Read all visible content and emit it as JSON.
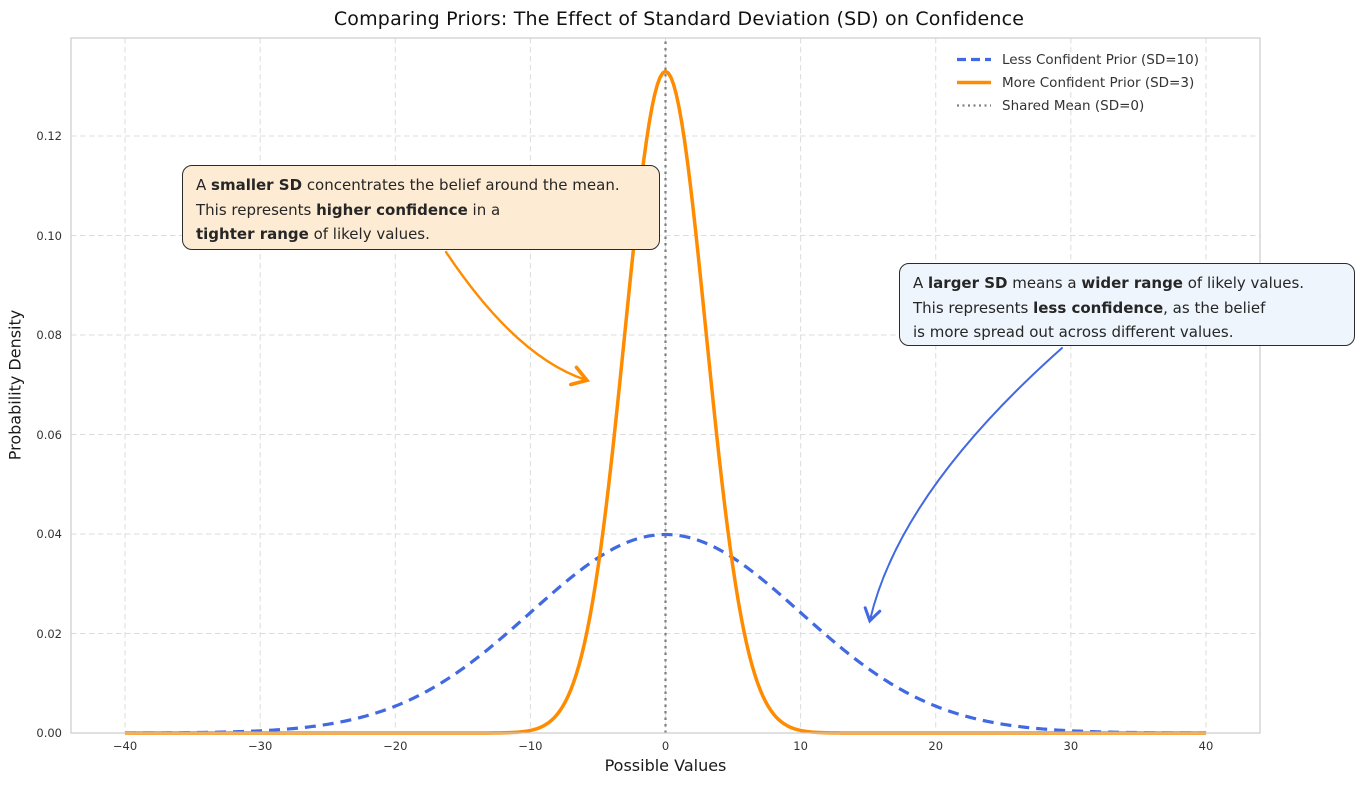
{
  "chart_data": {
    "type": "line",
    "title": "Comparing Priors: The Effect of Standard Deviation (SD) on Confidence",
    "xlabel": "Possible Values",
    "ylabel": "Probability Density",
    "xlim": [
      -44,
      44
    ],
    "ylim": [
      0,
      0.1397
    ],
    "grid": true,
    "legend_location": "upper right",
    "xticks": [
      {
        "v": -40,
        "label": "−40"
      },
      {
        "v": -30,
        "label": "−30"
      },
      {
        "v": -20,
        "label": "−20"
      },
      {
        "v": -10,
        "label": "−10"
      },
      {
        "v": 0,
        "label": "0"
      },
      {
        "v": 10,
        "label": "10"
      },
      {
        "v": 20,
        "label": "20"
      },
      {
        "v": 30,
        "label": "30"
      },
      {
        "v": 40,
        "label": "40"
      }
    ],
    "yticks": [
      {
        "v": 0.0,
        "label": "0.00"
      },
      {
        "v": 0.02,
        "label": "0.02"
      },
      {
        "v": 0.04,
        "label": "0.04"
      },
      {
        "v": 0.06,
        "label": "0.06"
      },
      {
        "v": 0.08,
        "label": "0.08"
      },
      {
        "v": 0.1,
        "label": "0.10"
      },
      {
        "v": 0.12,
        "label": "0.12"
      }
    ],
    "series": [
      {
        "label": "Less Confident Prior (SD=10)",
        "curve": "normal_pdf",
        "mean": 0,
        "sd": 10,
        "x_range": [
          -40,
          40
        ],
        "color": "#4169e1",
        "line_style": "dashed",
        "line_width": 3.2,
        "peak_density": 0.0399,
        "sample_x": [
          -40,
          -35,
          -30,
          -25,
          -20,
          -15,
          -10,
          -5,
          0,
          5,
          10,
          15,
          20,
          25,
          30,
          35,
          40
        ],
        "sample_y": [
          1.34e-05,
          8.73e-05,
          0.000443,
          0.00175,
          0.0054,
          0.01295,
          0.0242,
          0.03521,
          0.03989,
          0.03521,
          0.0242,
          0.01295,
          0.0054,
          0.00175,
          0.000443,
          8.73e-05,
          1.34e-05
        ]
      },
      {
        "label": "More Confident Prior (SD=3)",
        "curve": "normal_pdf",
        "mean": 0,
        "sd": 3,
        "x_range": [
          -40,
          40
        ],
        "color": "#ff8c00",
        "line_style": "solid",
        "line_width": 3.5,
        "peak_density": 0.13298,
        "sample_x": [
          -40,
          -35,
          -30,
          -25,
          -20,
          -15,
          -10,
          -5,
          0,
          5,
          10,
          15,
          20,
          25,
          30,
          35,
          40
        ],
        "sample_y": [
          0,
          0,
          0,
          0,
          0,
          5e-07,
          0.000514,
          0.03317,
          0.13298,
          0.03317,
          0.000514,
          5e-07,
          0,
          0,
          0,
          0,
          0
        ]
      },
      {
        "label": "Shared Mean (SD=0)",
        "curve": "vline",
        "x": 0,
        "color": "#7f7f7f",
        "line_style": "dotted",
        "line_width": 2.2
      }
    ]
  },
  "annotations": [
    {
      "id": "smaller-sd",
      "box_color": "#fdecd3",
      "border_color": "#2b2b2b",
      "arrow_color": "#ff8c00",
      "lines": [
        [
          {
            "t": "A ",
            "b": false
          },
          {
            "t": "smaller SD",
            "b": true
          },
          {
            "t": " concentrates the belief around the mean.",
            "b": false
          }
        ],
        [
          {
            "t": "This represents ",
            "b": false
          },
          {
            "t": "higher confidence",
            "b": true
          },
          {
            "t": " in a",
            "b": false
          }
        ],
        [
          {
            "t": "tighter range",
            "b": true
          },
          {
            "t": " of likely values.",
            "b": false
          }
        ]
      ]
    },
    {
      "id": "larger-sd",
      "box_color": "#eef5fc",
      "border_color": "#2b2b2b",
      "arrow_color": "#4169e1",
      "lines": [
        [
          {
            "t": "A ",
            "b": false
          },
          {
            "t": "larger SD",
            "b": true
          },
          {
            "t": " means a ",
            "b": false
          },
          {
            "t": "wider range",
            "b": true
          },
          {
            "t": " of likely values.",
            "b": false
          }
        ],
        [
          {
            "t": "This represents ",
            "b": false
          },
          {
            "t": "less confidence",
            "b": true
          },
          {
            "t": ", as the belief",
            "b": false
          }
        ],
        [
          {
            "t": "is more spread out across different values.",
            "b": false
          }
        ]
      ]
    }
  ],
  "style": {
    "grid_color": "#dcdcdc",
    "frame_color": "#cccccc",
    "background": "#ffffff"
  }
}
